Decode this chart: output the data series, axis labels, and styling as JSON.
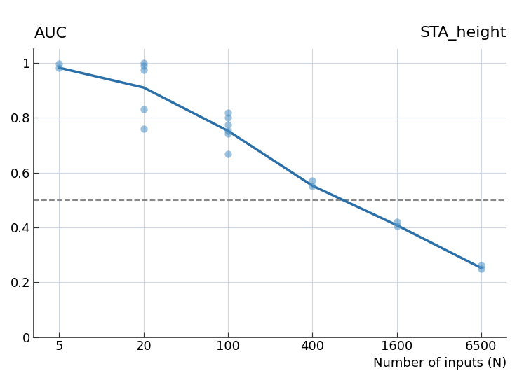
{
  "x_positions": [
    0,
    1,
    2,
    3,
    4,
    5
  ],
  "x_tick_labels": [
    "5",
    "20",
    "100",
    "400",
    "1600",
    "6500"
  ],
  "x_vals_map": {
    "5": 0,
    "20": 1,
    "100": 2,
    "400": 3,
    "1600": 4,
    "6500": 5
  },
  "line_x": [
    0,
    1,
    2,
    3,
    4,
    5
  ],
  "line_y": [
    0.982,
    0.91,
    0.752,
    0.552,
    0.408,
    0.252
  ],
  "scatter_x": [
    0,
    0,
    1,
    1,
    1,
    1,
    1,
    2,
    2,
    2,
    2,
    2,
    2,
    3,
    3,
    4,
    4,
    5,
    5
  ],
  "scatter_y": [
    0.982,
    0.998,
    0.76,
    0.832,
    0.975,
    0.99,
    1.0,
    0.668,
    0.743,
    0.752,
    0.775,
    0.8,
    0.818,
    0.55,
    0.572,
    0.405,
    0.42,
    0.248,
    0.262
  ],
  "hline_y": 0.5,
  "title_left": "AUC",
  "title_right": "STA_height",
  "xlabel": "Number of inputs (N)",
  "ylim": [
    0,
    1.05
  ],
  "xlim": [
    -0.3,
    5.3
  ],
  "line_color": "#2b6fa8",
  "scatter_color": "#4a90c4",
  "scatter_alpha": 0.55,
  "scatter_size": 55,
  "hline_color": "#888888",
  "background_color": "#ffffff",
  "grid_color": "#d0d8e4"
}
